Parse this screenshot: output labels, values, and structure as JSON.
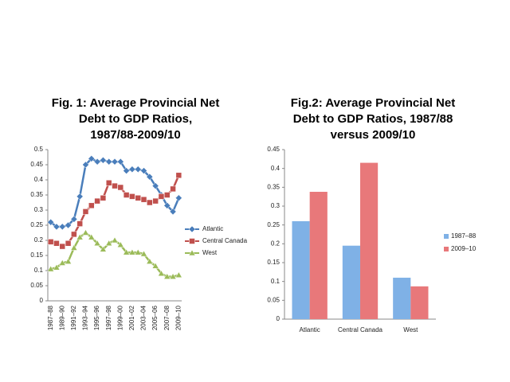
{
  "chart_data": [
    {
      "type": "line",
      "title": [
        "Fig. 1: Average Provincial Net",
        "Debt to GDP Ratios,",
        "1987/88-2009/10"
      ],
      "categories": [
        "1987–88",
        null,
        "1989–90",
        null,
        "1991–92",
        null,
        "1993–94",
        null,
        "1995–96",
        null,
        "1997–98",
        null,
        "1999–00",
        null,
        "2001–02",
        null,
        "2003–04",
        null,
        "2005–06",
        null,
        "2007–08",
        null,
        "2009–10"
      ],
      "series": [
        {
          "name": "Atlantic",
          "color": "#4a7ebb",
          "marker": "diamond",
          "values": [
            0.26,
            0.245,
            0.245,
            0.25,
            0.27,
            0.345,
            0.45,
            0.47,
            0.46,
            0.465,
            0.46,
            0.46,
            0.46,
            0.43,
            0.435,
            0.435,
            0.43,
            0.41,
            0.38,
            0.35,
            0.315,
            0.295,
            0.34
          ]
        },
        {
          "name": "Central Canada",
          "color": "#c0504d",
          "marker": "square",
          "values": [
            0.195,
            0.19,
            0.18,
            0.19,
            0.22,
            0.255,
            0.295,
            0.315,
            0.33,
            0.34,
            0.39,
            0.38,
            0.375,
            0.35,
            0.345,
            0.34,
            0.335,
            0.325,
            0.33,
            0.345,
            0.35,
            0.37,
            0.415
          ]
        },
        {
          "name": "West",
          "color": "#9bbb59",
          "marker": "triangle",
          "values": [
            0.105,
            0.11,
            0.125,
            0.13,
            0.175,
            0.21,
            0.225,
            0.21,
            0.19,
            0.17,
            0.19,
            0.2,
            0.185,
            0.16,
            0.16,
            0.16,
            0.155,
            0.13,
            0.115,
            0.09,
            0.08,
            0.08,
            0.085
          ]
        }
      ],
      "ylim": [
        0,
        0.5
      ],
      "yticks": [
        0,
        0.05,
        0.1,
        0.15,
        0.2,
        0.25,
        0.3,
        0.35,
        0.4,
        0.45,
        0.5
      ],
      "grid": false,
      "legend": "right"
    },
    {
      "type": "bar",
      "title": [
        "Fig.2: Average Provincial Net",
        "Debt to GDP Ratios, 1987/88",
        "versus 2009/10"
      ],
      "categories": [
        "Atlantic",
        "Central Canada",
        "West"
      ],
      "series": [
        {
          "name": "1987–88",
          "color": "#7fb1e6",
          "values": [
            0.26,
            0.195,
            0.11
          ]
        },
        {
          "name": "2009–10",
          "color": "#e8787a",
          "values": [
            0.338,
            0.415,
            0.087
          ]
        }
      ],
      "ylim": [
        0,
        0.45
      ],
      "yticks": [
        0,
        0.05,
        0.1,
        0.15,
        0.2,
        0.25,
        0.3,
        0.35,
        0.4,
        0.45
      ],
      "grid": false,
      "legend": "right"
    }
  ]
}
